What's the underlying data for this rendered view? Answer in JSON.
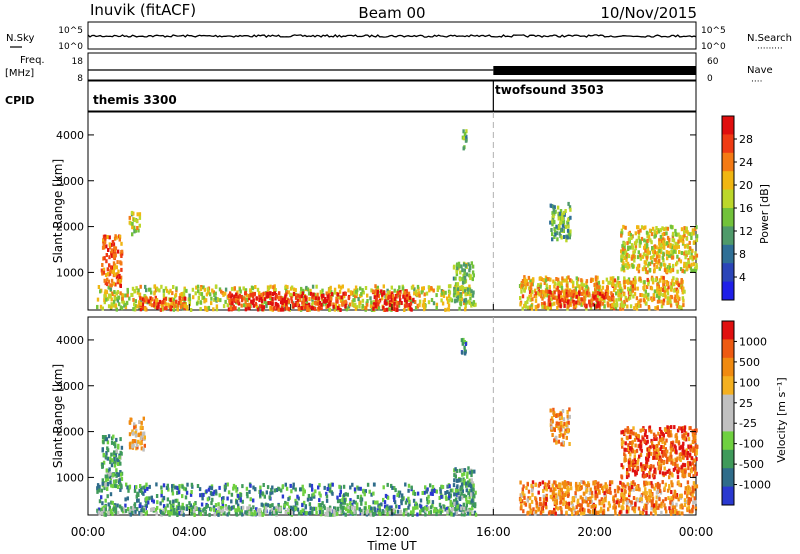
{
  "header": {
    "station": "Inuvik (fitACF)",
    "beam": "Beam 00",
    "date": "10/Nov/2015"
  },
  "panels": {
    "nsky_label": "N.Sky",
    "nsky_ticks": [
      "10^5",
      "10^0"
    ],
    "nsearch_label": "N.Search",
    "nsearch_ticks": [
      "10^5",
      "10^0"
    ],
    "freq_label": "Freq.",
    "freq_unit": "[MHz]",
    "freq_ticks": [
      "18",
      "8"
    ],
    "nave_label": "Nave",
    "nave_ticks": [
      "60",
      "0"
    ],
    "cpid_label": "CPID",
    "cpid_segments": [
      {
        "name": "themis 3300",
        "start_hour": 0,
        "end_hour": 16
      },
      {
        "name": "twofsound 3503",
        "start_hour": 16,
        "end_hour": 24
      }
    ]
  },
  "chart_data": [
    {
      "type": "heatmap",
      "quantity": "Power",
      "ylabel": "Slant Range [km]",
      "xlabel": "",
      "ylim": [
        180,
        4500
      ],
      "yticks": [
        "1000",
        "2000",
        "3000",
        "4000"
      ],
      "xlim_hours": [
        0,
        24
      ],
      "colorbar_label": "Power [dB]",
      "colorbar_ticks": [
        "4",
        "8",
        "12",
        "16",
        "20",
        "24",
        "28"
      ],
      "colorscale": [
        "#1f1fe8",
        "#2b45b8",
        "#2f6f96",
        "#4f9a6a",
        "#72c23a",
        "#bcd72a",
        "#f0b612",
        "#f47a14",
        "#ef3b14",
        "#e00e0e"
      ],
      "separator_hour": 16,
      "bands": [
        {
          "t0": 0.3,
          "t1": 15.3,
          "r0": 180,
          "r1": 700,
          "level": 0.55
        },
        {
          "t0": 5.5,
          "t1": 10.3,
          "r0": 180,
          "r1": 550,
          "level": 0.9
        },
        {
          "t0": 11.2,
          "t1": 12.8,
          "r0": 180,
          "r1": 600,
          "level": 0.9
        },
        {
          "t0": 2.0,
          "t1": 3.8,
          "r0": 180,
          "r1": 450,
          "level": 0.8
        },
        {
          "t0": 0.5,
          "t1": 1.3,
          "r0": 700,
          "r1": 1800,
          "level": 0.8
        },
        {
          "t0": 1.6,
          "t1": 2.0,
          "r0": 1800,
          "r1": 2300,
          "level": 0.55
        },
        {
          "t0": 17.0,
          "t1": 23.5,
          "r0": 200,
          "r1": 900,
          "level": 0.65
        },
        {
          "t0": 18.0,
          "t1": 20.5,
          "r0": 250,
          "r1": 600,
          "level": 0.85
        },
        {
          "t0": 21.0,
          "t1": 24.0,
          "r0": 1000,
          "r1": 2000,
          "level": 0.6
        },
        {
          "t0": 18.2,
          "t1": 19.0,
          "r0": 1700,
          "r1": 2500,
          "level": 0.4
        },
        {
          "t0": 14.7,
          "t1": 14.9,
          "r0": 3700,
          "r1": 4100,
          "level": 0.4
        },
        {
          "t0": 14.4,
          "t1": 15.2,
          "r0": 300,
          "r1": 1200,
          "level": 0.45
        }
      ]
    },
    {
      "type": "heatmap",
      "quantity": "Velocity",
      "ylabel": "Slant Range [km]",
      "xlabel": "Time UT",
      "ylim": [
        180,
        4500
      ],
      "yticks": [
        "1000",
        "2000",
        "3000",
        "4000"
      ],
      "xlim_hours": [
        0,
        24
      ],
      "xticks": [
        "00:00",
        "04:00",
        "08:00",
        "12:00",
        "16:00",
        "20:00",
        "00:00"
      ],
      "colorbar_label": "Velocity [m s⁻¹]",
      "colorbar_ticks": [
        "1000",
        "500",
        "100",
        "25",
        "-25",
        "-100",
        "-500",
        "-1000"
      ],
      "colorscale": [
        "#2a39d0",
        "#2f6c8a",
        "#3f9a5a",
        "#6fd040",
        "#c0c0c0",
        "#c0c0c0",
        "#f4b020",
        "#f08a10",
        "#ee5a12",
        "#e01010"
      ],
      "separator_hour": 16,
      "bands": [
        {
          "t0": 0.3,
          "t1": 15.3,
          "r0": 180,
          "r1": 850,
          "level": 0.22
        },
        {
          "t0": 0.3,
          "t1": 15.3,
          "r0": 180,
          "r1": 350,
          "level": 0.35
        },
        {
          "t0": 0.5,
          "t1": 1.3,
          "r0": 800,
          "r1": 1900,
          "level": 0.28
        },
        {
          "t0": 1.6,
          "t1": 2.2,
          "r0": 1600,
          "r1": 2300,
          "level": 0.7
        },
        {
          "t0": 17.0,
          "t1": 24.0,
          "r0": 200,
          "r1": 900,
          "level": 0.75
        },
        {
          "t0": 21.0,
          "t1": 24.0,
          "r0": 1000,
          "r1": 2100,
          "level": 0.85
        },
        {
          "t0": 18.2,
          "t1": 19.0,
          "r0": 1700,
          "r1": 2500,
          "level": 0.7
        },
        {
          "t0": 14.7,
          "t1": 14.9,
          "r0": 3700,
          "r1": 4100,
          "level": 0.2
        },
        {
          "t0": 14.4,
          "t1": 15.2,
          "r0": 300,
          "r1": 1200,
          "level": 0.3
        }
      ]
    }
  ]
}
